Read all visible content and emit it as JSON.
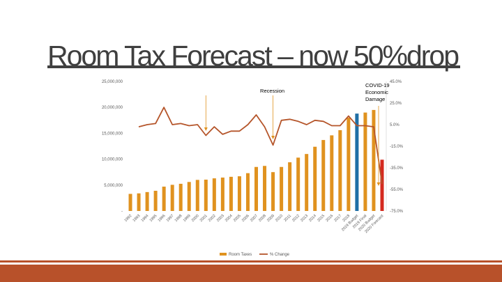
{
  "slide": {
    "title": "Room Tax Forecast – now 50%drop"
  },
  "colors": {
    "bar": "#E0921F",
    "bar_budget": "#1F6FA6",
    "bar_forecast": "#D42A1F",
    "line": "#B5552A",
    "annotation": "#E0921F",
    "band": "#B8512A",
    "title_rule": "#404040"
  },
  "chart_data": {
    "type": "bar",
    "categories": [
      "1992",
      "1993",
      "1994",
      "1995",
      "1996",
      "1997",
      "1998",
      "1999",
      "2000",
      "2001",
      "2002",
      "2003",
      "2004",
      "2005",
      "2006",
      "2007",
      "2008",
      "2009",
      "2010",
      "2011",
      "2012",
      "2013",
      "2014",
      "2015",
      "2016",
      "2017",
      "2018",
      "2019 Budget",
      "2019 Final",
      "2020 Budget",
      "2020 Forecast"
    ],
    "series": [
      {
        "name": "Room Taxes",
        "axis": "left",
        "type": "bar",
        "values": [
          3300000,
          3400000,
          3650000,
          3900000,
          4700000,
          5050000,
          5250000,
          5600000,
          6000000,
          6050000,
          6300000,
          6450000,
          6600000,
          6700000,
          7300000,
          8500000,
          8700000,
          7500000,
          8500000,
          9400000,
          10300000,
          11000000,
          12400000,
          13700000,
          14600000,
          15600000,
          18000000,
          18800000,
          19000000,
          19500000,
          9900000
        ]
      },
      {
        "name": "% Change",
        "axis": "right",
        "type": "line",
        "values": [
          null,
          0.03,
          0.05,
          0.06,
          0.21,
          0.05,
          0.06,
          0.04,
          0.05,
          -0.05,
          0.03,
          -0.04,
          -0.01,
          -0.01,
          0.05,
          0.14,
          0.03,
          -0.14,
          0.09,
          0.1,
          0.08,
          0.05,
          0.09,
          0.08,
          0.04,
          0.04,
          0.13,
          0.04,
          0.04,
          0.03,
          -0.5
        ]
      }
    ],
    "bar_highlights": {
      "2019 Budget": "budget",
      "2020 Forecast": "forecast"
    },
    "left_axis": {
      "ticks": [
        "-",
        "5,000,000",
        "10,000,000",
        "15,000,000",
        "20,000,000",
        "25,000,000"
      ],
      "ylim": [
        0,
        25000000
      ]
    },
    "right_axis": {
      "ticks": [
        "-75.0%",
        "-55.0%",
        "-35.0%",
        "-15.0%",
        "5.0%",
        "25.0%",
        "45.0%"
      ],
      "ylim": [
        -0.75,
        0.45
      ]
    },
    "annotations": [
      {
        "text": "Recession",
        "lines": [
          "Recession"
        ],
        "x_category": "2009"
      },
      {
        "text": "COVID-19 Economic Damage",
        "lines": [
          "COVID-19",
          "Economic",
          "Damage"
        ],
        "x_category": "2020 Forecast"
      },
      {
        "text": "",
        "lines": [],
        "x_category": "2001"
      }
    ],
    "legend": {
      "position": "bottom",
      "entries": [
        "Room Taxes",
        "% Change"
      ]
    },
    "grid": false
  }
}
